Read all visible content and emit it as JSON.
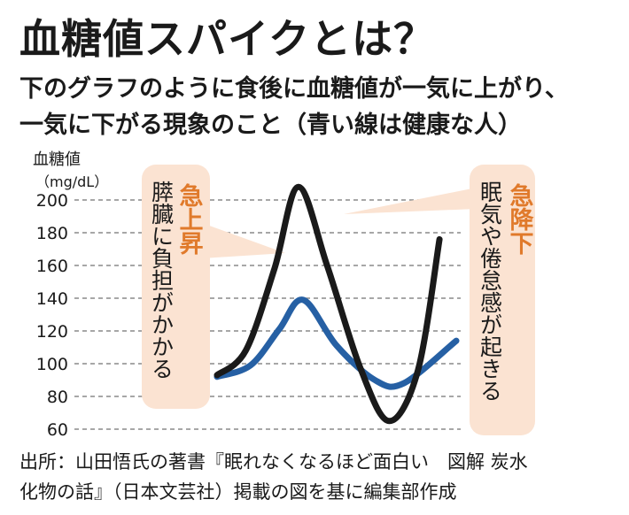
{
  "title": "血糖値スパイクとは？",
  "subtitle": [
    "下のグラフのように食後に血糖値が一気に上がり、",
    "一気に下がる現象のこと（青い線は健康な人）"
  ],
  "source": [
    "出所：山田悟氏の著書『眠れなくなるほど面白い　図解 炭水",
    "化物の話』（日本文芸社）掲載の図を基に編集部作成"
  ],
  "callouts": {
    "left": {
      "heading": "急上昇",
      "text": "膵臓に負担がかかる"
    },
    "right": {
      "heading": "急降下",
      "text": "眠気や倦怠感が起きる"
    }
  },
  "colors": {
    "spike_line": "#1a1a1a",
    "healthy_line": "#2660a4",
    "callout_fill": "#fbe3d2",
    "callout_heading": "#e07a2b",
    "grid": "#8a8a8a"
  },
  "chart_data": {
    "type": "line",
    "ylabel": "血糖値",
    "yunit": "（mg/dL）",
    "ylim": [
      60,
      200
    ],
    "yticks": [
      60,
      80,
      100,
      120,
      140,
      160,
      180,
      200
    ],
    "grid": true,
    "series": [
      {
        "key": "spike",
        "color": "#1a1a1a",
        "points": [
          [
            0,
            93
          ],
          [
            12,
            108
          ],
          [
            24,
            158
          ],
          [
            34,
            208
          ],
          [
            46,
            160
          ],
          [
            60,
            97
          ],
          [
            72,
            65
          ],
          [
            84,
            96
          ],
          [
            93,
            176
          ]
        ]
      },
      {
        "key": "healthy",
        "color": "#2660a4",
        "points": [
          [
            0,
            92
          ],
          [
            14,
            99
          ],
          [
            26,
            121
          ],
          [
            36,
            139
          ],
          [
            50,
            111
          ],
          [
            66,
            90
          ],
          [
            78,
            88
          ],
          [
            100,
            114
          ]
        ]
      }
    ]
  }
}
